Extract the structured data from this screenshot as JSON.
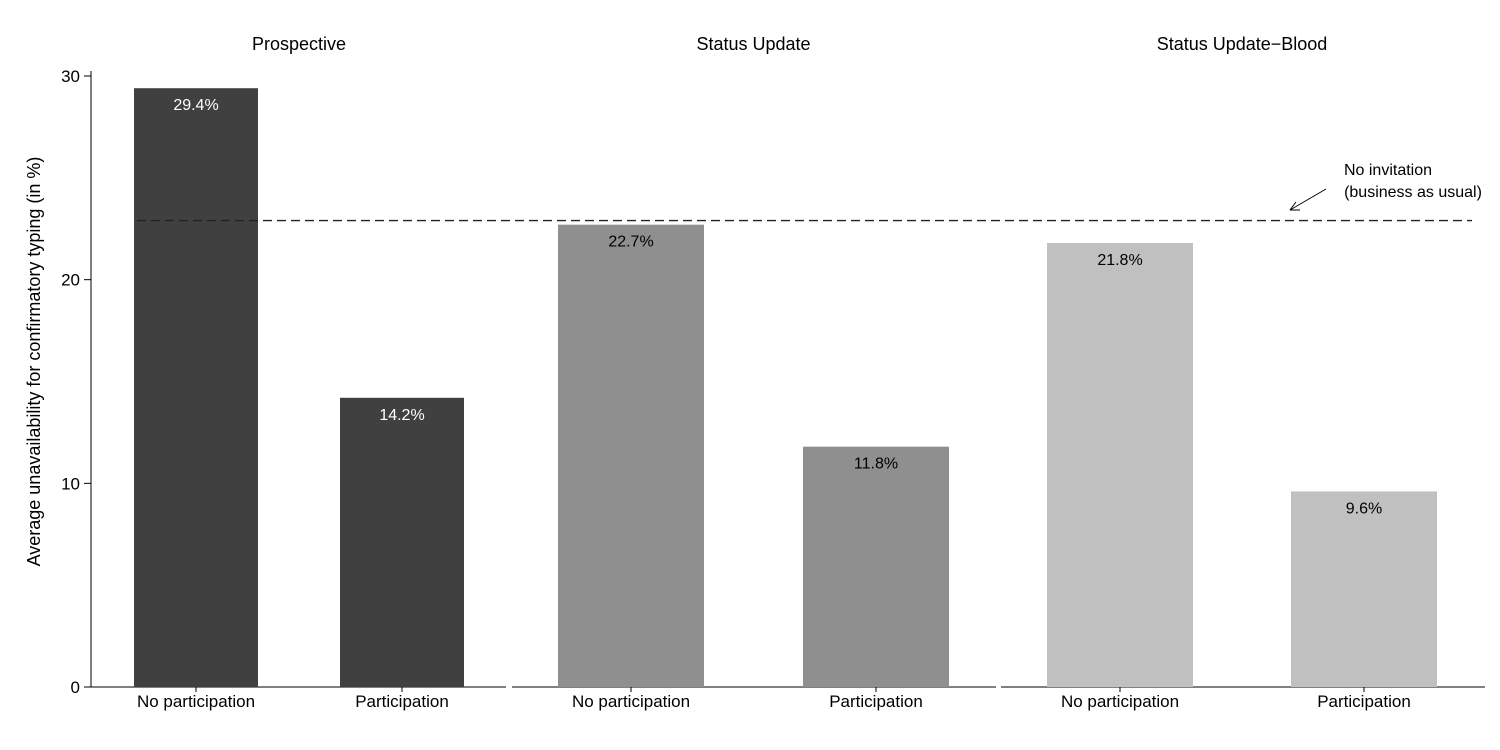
{
  "chart_data": {
    "type": "bar",
    "ylabel": "Average unavailability for confirmatory typing (in %)",
    "ylim": [
      0,
      30
    ],
    "yticks": [
      0,
      10,
      20,
      30
    ],
    "grid": false,
    "panels": [
      {
        "title": "Prospective",
        "color": "#404040",
        "label_color": "#ffffff",
        "categories": [
          "No participation",
          "Participation"
        ],
        "values": [
          29.4,
          14.2
        ],
        "value_labels": [
          "29.4%",
          "14.2%"
        ]
      },
      {
        "title": "Status Update",
        "color": "#8f8f8f",
        "label_color": "#000000",
        "categories": [
          "No participation",
          "Participation"
        ],
        "values": [
          22.7,
          11.8
        ],
        "value_labels": [
          "22.7%",
          "11.8%"
        ]
      },
      {
        "title": "Status Update−Blood",
        "color": "#c0c0c0",
        "label_color": "#000000",
        "categories": [
          "No participation",
          "Participation"
        ],
        "values": [
          21.8,
          9.6
        ],
        "value_labels": [
          "21.8%",
          "9.6%"
        ]
      }
    ],
    "reference_line": {
      "value": 22.9,
      "style": "dashed",
      "annotation": [
        "No invitation",
        "(business as usual)"
      ]
    }
  }
}
